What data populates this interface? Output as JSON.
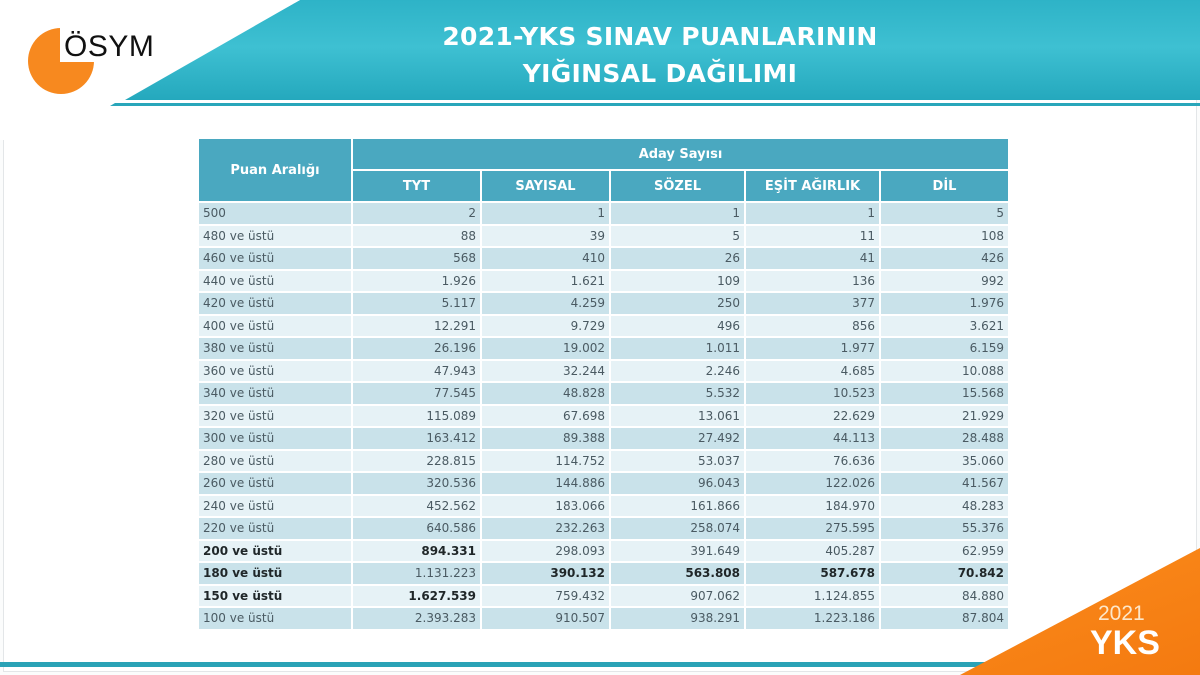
{
  "logo": {
    "text": "ÖSYM",
    "accent_color": "#f7891f"
  },
  "title": {
    "line1": "2021-YKS SINAV PUANLARININ",
    "line2": "YIĞINSAL DAĞILIMI"
  },
  "table": {
    "row_header": "Puan Aralığı",
    "group_header": "Aday Sayısı",
    "columns": [
      "TYT",
      "SAYISAL",
      "SÖZEL",
      "EŞİT AĞIRLIK",
      "DİL"
    ],
    "rows": [
      {
        "label": "500",
        "values": [
          "2",
          "1",
          "1",
          "1",
          "5"
        ]
      },
      {
        "label": "480 ve üstü",
        "values": [
          "88",
          "39",
          "5",
          "11",
          "108"
        ]
      },
      {
        "label": "460 ve üstü",
        "values": [
          "568",
          "410",
          "26",
          "41",
          "426"
        ]
      },
      {
        "label": "440 ve üstü",
        "values": [
          "1.926",
          "1.621",
          "109",
          "136",
          "992"
        ]
      },
      {
        "label": "420 ve üstü",
        "values": [
          "5.117",
          "4.259",
          "250",
          "377",
          "1.976"
        ]
      },
      {
        "label": "400 ve üstü",
        "values": [
          "12.291",
          "9.729",
          "496",
          "856",
          "3.621"
        ]
      },
      {
        "label": "380 ve üstü",
        "values": [
          "26.196",
          "19.002",
          "1.011",
          "1.977",
          "6.159"
        ]
      },
      {
        "label": "360 ve üstü",
        "values": [
          "47.943",
          "32.244",
          "2.246",
          "4.685",
          "10.088"
        ]
      },
      {
        "label": "340 ve üstü",
        "values": [
          "77.545",
          "48.828",
          "5.532",
          "10.523",
          "15.568"
        ]
      },
      {
        "label": "320 ve üstü",
        "values": [
          "115.089",
          "67.698",
          "13.061",
          "22.629",
          "21.929"
        ]
      },
      {
        "label": "300 ve üstü",
        "values": [
          "163.412",
          "89.388",
          "27.492",
          "44.113",
          "28.488"
        ]
      },
      {
        "label": "280 ve üstü",
        "values": [
          "228.815",
          "114.752",
          "53.037",
          "76.636",
          "35.060"
        ]
      },
      {
        "label": "260 ve üstü",
        "values": [
          "320.536",
          "144.886",
          "96.043",
          "122.026",
          "41.567"
        ]
      },
      {
        "label": "240 ve üstü",
        "values": [
          "452.562",
          "183.066",
          "161.866",
          "184.970",
          "48.283"
        ]
      },
      {
        "label": "220 ve üstü",
        "values": [
          "640.586",
          "232.263",
          "258.074",
          "275.595",
          "55.376"
        ]
      },
      {
        "label": "200 ve üstü",
        "values": [
          "894.331",
          "298.093",
          "391.649",
          "405.287",
          "62.959"
        ]
      },
      {
        "label": "180 ve üstü",
        "values": [
          "1.131.223",
          "390.132",
          "563.808",
          "587.678",
          "70.842"
        ]
      },
      {
        "label": "150 ve üstü",
        "values": [
          "1.627.539",
          "759.432",
          "907.062",
          "1.124.855",
          "84.880"
        ]
      },
      {
        "label": "100 ve üstü",
        "values": [
          "2.393.283",
          "910.507",
          "938.291",
          "1.223.186",
          "87.804"
        ]
      }
    ],
    "bold_cells_note": "200: label+TYT; 180: label+SAYISAL+SÖZEL+EŞİT AĞIRLIK+DİL; 150: label+TYT"
  },
  "corner_badge": {
    "year": "2021",
    "label": "YKS",
    "color": "#f7891f"
  },
  "colors": {
    "header_teal": "#4aa8c0",
    "band_teal": "#2eb3c7",
    "row_dark": "#c9e2ea",
    "row_light": "#e6f2f6"
  }
}
